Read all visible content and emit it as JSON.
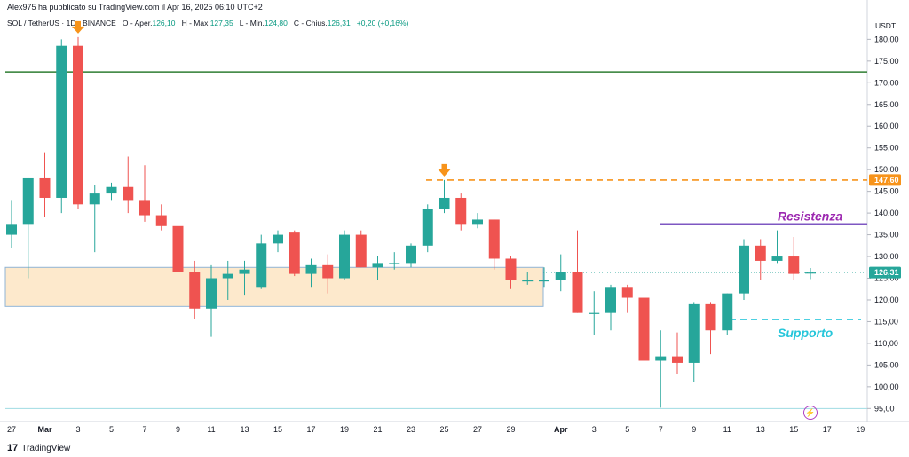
{
  "header": {
    "publisher": "Alex975 ha pubblicato su TradingView.com il Apr 16, 2025 06:10 UTC+2",
    "symbol": "SOL / TetherUS · 1D · BINANCE",
    "open_label": "O - Aper.",
    "open": "126,10",
    "high_label": "H - Max.",
    "high": "127,35",
    "low_label": "L - Min.",
    "low": "124,80",
    "close_label": "C - Chius.",
    "close": "126,31",
    "change": "+0,20 (+0,16%)"
  },
  "footer": {
    "brand": "TradingView",
    "logo": "17"
  },
  "colors": {
    "up": "#26a69a",
    "down": "#ef5350",
    "resistance": "#7e57c2",
    "resistance_text": "#9c27b0",
    "support": "#4dd0e1",
    "support_text": "#26c6da",
    "green_line": "#2e7d32",
    "orange": "#f7931a",
    "zone_fill": "#fde9cc",
    "zone_border": "#90b4d6",
    "price_tag": "#26a69a"
  },
  "icons": {
    "marker": "arrow-down-icon",
    "bolt": "lightning-icon"
  },
  "chart_data": {
    "type": "candlestick",
    "currency": "USDT",
    "ylim": [
      92,
      186
    ],
    "y_ticks": [
      95,
      100,
      105,
      110,
      115,
      120,
      125,
      130,
      135,
      140,
      145,
      150,
      155,
      160,
      165,
      170,
      175,
      180
    ],
    "y_tick_labels": [
      "95,00",
      "100,00",
      "105,00",
      "110,00",
      "115,00",
      "120,00",
      "125,00",
      "130,00",
      "135,00",
      "140,00",
      "145,00",
      "150,00",
      "155,00",
      "160,00",
      "165,00",
      "170,00",
      "175,00",
      "180,00"
    ],
    "x_labels": [
      {
        "i": 0,
        "label": "27"
      },
      {
        "i": 2,
        "label": "Mar"
      },
      {
        "i": 4,
        "label": "3"
      },
      {
        "i": 6,
        "label": "5"
      },
      {
        "i": 8,
        "label": "7"
      },
      {
        "i": 10,
        "label": "9"
      },
      {
        "i": 12,
        "label": "11"
      },
      {
        "i": 14,
        "label": "13"
      },
      {
        "i": 16,
        "label": "15"
      },
      {
        "i": 18,
        "label": "17"
      },
      {
        "i": 20,
        "label": "19"
      },
      {
        "i": 22,
        "label": "21"
      },
      {
        "i": 24,
        "label": "23"
      },
      {
        "i": 26,
        "label": "25"
      },
      {
        "i": 28,
        "label": "27"
      },
      {
        "i": 30,
        "label": "29"
      },
      {
        "i": 33,
        "label": "Apr"
      },
      {
        "i": 35,
        "label": "3"
      },
      {
        "i": 37,
        "label": "5"
      },
      {
        "i": 39,
        "label": "7"
      },
      {
        "i": 41,
        "label": "9"
      },
      {
        "i": 43,
        "label": "11"
      },
      {
        "i": 45,
        "label": "13"
      },
      {
        "i": 47,
        "label": "15"
      },
      {
        "i": 49,
        "label": "17"
      },
      {
        "i": 51,
        "label": "19"
      }
    ],
    "candles": [
      {
        "o": 135.0,
        "h": 143.0,
        "l": 132.0,
        "c": 137.5
      },
      {
        "o": 137.5,
        "h": 148.0,
        "l": 125.0,
        "c": 148.0
      },
      {
        "o": 148.0,
        "h": 154.0,
        "l": 139.0,
        "c": 143.5
      },
      {
        "o": 143.5,
        "h": 180.0,
        "l": 140.0,
        "c": 178.5
      },
      {
        "o": 178.5,
        "h": 180.5,
        "l": 141.0,
        "c": 142.0
      },
      {
        "o": 142.0,
        "h": 146.5,
        "l": 131.0,
        "c": 144.5
      },
      {
        "o": 144.5,
        "h": 147.0,
        "l": 143.0,
        "c": 146.0
      },
      {
        "o": 146.0,
        "h": 153.0,
        "l": 140.0,
        "c": 143.0
      },
      {
        "o": 143.0,
        "h": 151.0,
        "l": 138.0,
        "c": 139.5
      },
      {
        "o": 139.5,
        "h": 142.0,
        "l": 136.0,
        "c": 137.0
      },
      {
        "o": 137.0,
        "h": 140.0,
        "l": 125.0,
        "c": 126.5
      },
      {
        "o": 126.5,
        "h": 129.0,
        "l": 115.5,
        "c": 118.0
      },
      {
        "o": 118.0,
        "h": 128.0,
        "l": 111.5,
        "c": 125.0
      },
      {
        "o": 125.0,
        "h": 129.0,
        "l": 120.0,
        "c": 126.0
      },
      {
        "o": 126.0,
        "h": 129.0,
        "l": 121.0,
        "c": 127.0
      },
      {
        "o": 123.0,
        "h": 135.0,
        "l": 122.5,
        "c": 133.0
      },
      {
        "o": 133.0,
        "h": 136.0,
        "l": 131.0,
        "c": 135.0
      },
      {
        "o": 135.5,
        "h": 136.0,
        "l": 125.5,
        "c": 126.0
      },
      {
        "o": 126.0,
        "h": 129.5,
        "l": 123.0,
        "c": 128.0
      },
      {
        "o": 128.0,
        "h": 130.5,
        "l": 121.5,
        "c": 125.0
      },
      {
        "o": 125.0,
        "h": 136.0,
        "l": 124.5,
        "c": 135.0
      },
      {
        "o": 135.0,
        "h": 136.0,
        "l": 127.5,
        "c": 127.5
      },
      {
        "o": 127.5,
        "h": 130.0,
        "l": 124.5,
        "c": 128.5
      },
      {
        "o": 128.5,
        "h": 131.0,
        "l": 127.0,
        "c": 128.5
      },
      {
        "o": 128.5,
        "h": 133.0,
        "l": 127.5,
        "c": 132.5
      },
      {
        "o": 132.5,
        "h": 142.0,
        "l": 131.0,
        "c": 141.0
      },
      {
        "o": 141.0,
        "h": 147.6,
        "l": 140.0,
        "c": 143.5
      },
      {
        "o": 143.5,
        "h": 144.5,
        "l": 136.0,
        "c": 137.5
      },
      {
        "o": 137.5,
        "h": 140.0,
        "l": 136.5,
        "c": 138.5
      },
      {
        "o": 138.5,
        "h": 138.5,
        "l": 127.0,
        "c": 129.5
      },
      {
        "o": 129.5,
        "h": 130.0,
        "l": 122.5,
        "c": 124.5
      },
      {
        "o": 124.5,
        "h": 126.5,
        "l": 123.5,
        "c": 124.5
      },
      {
        "o": 124.5,
        "h": 127.5,
        "l": 123.0,
        "c": 124.5
      },
      {
        "o": 124.5,
        "h": 130.5,
        "l": 122.0,
        "c": 126.5
      },
      {
        "o": 126.5,
        "h": 136.0,
        "l": 117.0,
        "c": 117.0
      },
      {
        "o": 117.0,
        "h": 122.0,
        "l": 112.0,
        "c": 117.0
      },
      {
        "o": 117.0,
        "h": 123.5,
        "l": 113.0,
        "c": 123.0
      },
      {
        "o": 123.0,
        "h": 123.5,
        "l": 117.0,
        "c": 120.5
      },
      {
        "o": 120.5,
        "h": 120.5,
        "l": 104.0,
        "c": 106.0
      },
      {
        "o": 106.0,
        "h": 113.0,
        "l": 95.2,
        "c": 107.0
      },
      {
        "o": 107.0,
        "h": 112.5,
        "l": 103.0,
        "c": 105.5
      },
      {
        "o": 105.5,
        "h": 119.5,
        "l": 101.0,
        "c": 119.0
      },
      {
        "o": 119.0,
        "h": 119.5,
        "l": 107.5,
        "c": 113.0
      },
      {
        "o": 113.0,
        "h": 121.5,
        "l": 112.0,
        "c": 121.5
      },
      {
        "o": 121.5,
        "h": 134.0,
        "l": 120.0,
        "c": 132.5
      },
      {
        "o": 132.5,
        "h": 134.0,
        "l": 124.5,
        "c": 129.0
      },
      {
        "o": 129.0,
        "h": 136.0,
        "l": 128.5,
        "c": 130.0
      },
      {
        "o": 130.0,
        "h": 134.5,
        "l": 124.5,
        "c": 126.0
      },
      {
        "o": 126.1,
        "h": 127.35,
        "l": 124.8,
        "c": 126.31
      }
    ],
    "levels": {
      "green": 172.5,
      "resistance": {
        "price": 137.5,
        "label": "Resistenza"
      },
      "support": {
        "price": 115.5,
        "label": "Supporto"
      },
      "orange_dashed": {
        "price": 147.6,
        "label": "147,60"
      },
      "bottom_cyan": 95.0,
      "last_price": {
        "price": 126.31,
        "label": "126,31"
      },
      "zone": [
        118.5,
        127.5
      ]
    }
  }
}
